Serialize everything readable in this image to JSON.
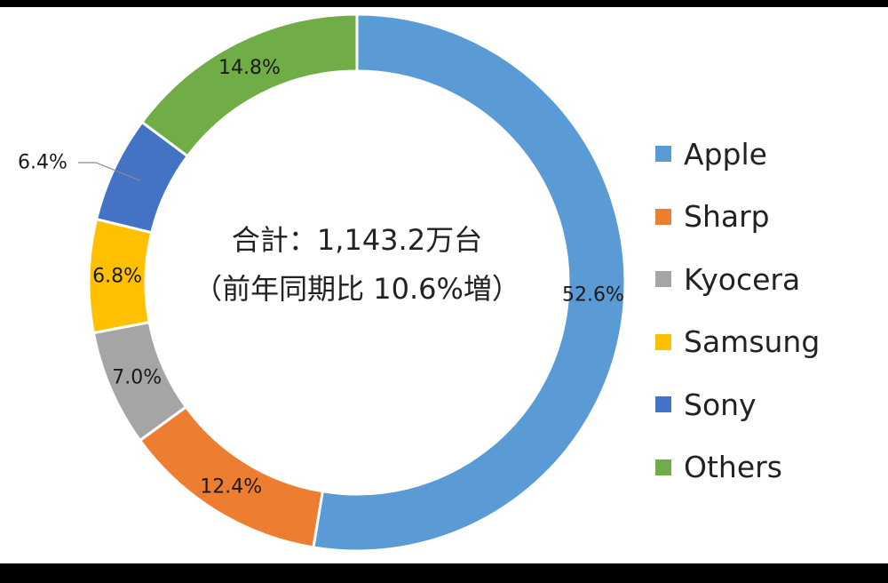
{
  "colors": {
    "apple": "#5B9BD5",
    "sharp": "#ED7D31",
    "kyocera": "#A5A5A5",
    "samsung": "#FFC000",
    "sony": "#4472C4",
    "others": "#70AD47"
  },
  "chart_data": {
    "type": "pie",
    "donut": true,
    "title": "",
    "center_text": [
      "合計：1,143.2万台",
      "（前年同期比 10.6%増）"
    ],
    "legend_position": "right",
    "categories": [
      "Apple",
      "Sharp",
      "Kyocera",
      "Samsung",
      "Sony",
      "Others"
    ],
    "values": [
      52.6,
      12.4,
      7.0,
      6.8,
      6.4,
      14.8
    ],
    "labels": [
      "52.6%",
      "12.4%",
      "7.0%",
      "6.8%",
      "6.4%",
      "14.8%"
    ],
    "series_colors": [
      "#5B9BD5",
      "#ED7D31",
      "#A5A5A5",
      "#FFC000",
      "#4472C4",
      "#70AD47"
    ]
  }
}
